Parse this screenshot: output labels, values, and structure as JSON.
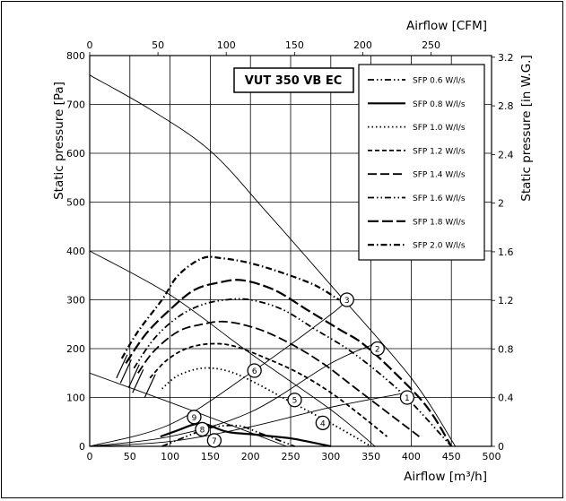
{
  "chart_data": {
    "type": "line",
    "title": "VUT 350 VB EC",
    "xlabel": "Airflow [m³/h]",
    "ylabel": "Static pressure [Pa]",
    "x2label": "Airflow [CFM]",
    "y2label": "Static pressure [in W.G.]",
    "xlim": [
      0,
      500
    ],
    "ylim": [
      0,
      800
    ],
    "x2lim": [
      0,
      294.3
    ],
    "y2lim": [
      0,
      3.2136
    ],
    "xticks": [
      "0",
      "50",
      "100",
      "150",
      "200",
      "250",
      "300",
      "350",
      "400",
      "450",
      "500"
    ],
    "yticks": [
      "0",
      "100",
      "200",
      "300",
      "400",
      "500",
      "600",
      "700",
      "800"
    ],
    "x2ticks": [
      "0",
      "50",
      "100",
      "150",
      "200",
      "250"
    ],
    "y2ticks": [
      "0",
      "0.4",
      "0.8",
      "1.2",
      "1.6",
      "2",
      "2.4",
      "2.8",
      "3.2"
    ],
    "grid": true,
    "legend_position": "top-right",
    "fan_curves": [
      [
        [
          0,
          760
        ],
        [
          75,
          690
        ],
        [
          150,
          605
        ],
        [
          220,
          480
        ],
        [
          300,
          330
        ],
        [
          400,
          140
        ],
        [
          455,
          0
        ]
      ],
      [
        [
          0,
          400
        ],
        [
          100,
          310
        ],
        [
          200,
          190
        ],
        [
          300,
          75
        ],
        [
          355,
          0
        ]
      ],
      [
        [
          0,
          150
        ],
        [
          100,
          90
        ],
        [
          200,
          28
        ],
        [
          245,
          0
        ]
      ]
    ],
    "system_curves": [
      [
        [
          0,
          0
        ],
        [
          100,
          10
        ],
        [
          200,
          40
        ],
        [
          300,
          80
        ],
        [
          395,
          110
        ]
      ],
      [
        [
          0,
          0
        ],
        [
          100,
          20
        ],
        [
          200,
          70
        ],
        [
          300,
          170
        ],
        [
          355,
          210
        ]
      ],
      [
        [
          0,
          0
        ],
        [
          100,
          45
        ],
        [
          200,
          150
        ],
        [
          300,
          270
        ],
        [
          320,
          300
        ]
      ]
    ],
    "series": [
      {
        "name": "SFP 0.6 W/l/s",
        "dash": "7 3 1.5 3 1.5 3",
        "width": 1.8,
        "points": [
          [
            90,
            0
          ],
          [
            120,
            20
          ],
          [
            150,
            38
          ],
          [
            185,
            42
          ],
          [
            215,
            25
          ],
          [
            255,
            0
          ]
        ]
      },
      {
        "name": "SFP 0.8 W/l/s",
        "dash": "",
        "width": 2.2,
        "points": [
          [
            88,
            20
          ],
          [
            110,
            33
          ],
          [
            130,
            45
          ],
          [
            145,
            45
          ],
          [
            170,
            30
          ],
          [
            200,
            25
          ],
          [
            230,
            20
          ],
          [
            255,
            15
          ],
          [
            300,
            0
          ]
        ]
      },
      {
        "name": "SFP 1.0 W/l/s",
        "dash": "1.5 3",
        "width": 1.8,
        "points": [
          [
            90,
            118
          ],
          [
            110,
            145
          ],
          [
            140,
            160
          ],
          [
            170,
            155
          ],
          [
            200,
            135
          ],
          [
            240,
            100
          ],
          [
            280,
            65
          ],
          [
            310,
            38
          ],
          [
            350,
            0
          ]
        ]
      },
      {
        "name": "SFP 1.2 W/l/s",
        "dash": "5 3",
        "width": 1.8,
        "points": [
          [
            75,
            140
          ],
          [
            95,
            175
          ],
          [
            120,
            200
          ],
          [
            150,
            210
          ],
          [
            180,
            205
          ],
          [
            220,
            180
          ],
          [
            260,
            150
          ],
          [
            300,
            110
          ],
          [
            340,
            60
          ],
          [
            370,
            20
          ]
        ]
      },
      {
        "name": "SFP 1.4 W/l/s",
        "dash": "10 4",
        "width": 1.8,
        "points": [
          [
            60,
            150
          ],
          [
            80,
            195
          ],
          [
            110,
            235
          ],
          [
            140,
            250
          ],
          [
            170,
            255
          ],
          [
            210,
            240
          ],
          [
            250,
            210
          ],
          [
            290,
            170
          ],
          [
            330,
            120
          ],
          [
            370,
            70
          ],
          [
            410,
            20
          ]
        ]
      },
      {
        "name": "SFP 1.6 W/l/s",
        "dash": "7 3 1.5 3 1.5 3",
        "width": 1.8,
        "points": [
          [
            55,
            160
          ],
          [
            80,
            220
          ],
          [
            110,
            265
          ],
          [
            140,
            290
          ],
          [
            170,
            300
          ],
          [
            200,
            300
          ],
          [
            240,
            280
          ],
          [
            280,
            240
          ],
          [
            320,
            200
          ],
          [
            360,
            150
          ],
          [
            400,
            90
          ],
          [
            450,
            0
          ]
        ]
      },
      {
        "name": "SFP 1.8 W/l/s",
        "dash": "12 4",
        "width": 2.2,
        "points": [
          [
            45,
            170
          ],
          [
            70,
            230
          ],
          [
            100,
            280
          ],
          [
            130,
            320
          ],
          [
            160,
            335
          ],
          [
            190,
            340
          ],
          [
            230,
            320
          ],
          [
            270,
            280
          ],
          [
            310,
            240
          ],
          [
            340,
            210
          ],
          [
            380,
            150
          ],
          [
            420,
            80
          ],
          [
            450,
            0
          ]
        ]
      },
      {
        "name": "SFP 2.0 W/l/s",
        "dash": "7 3 1.5 3",
        "width": 2.2,
        "points": [
          [
            40,
            180
          ],
          [
            60,
            235
          ],
          [
            90,
            300
          ],
          [
            110,
            350
          ],
          [
            140,
            385
          ],
          [
            165,
            385
          ],
          [
            200,
            375
          ],
          [
            240,
            355
          ],
          [
            280,
            330
          ],
          [
            310,
            300
          ]
        ]
      }
    ],
    "markers": [
      {
        "label": "1",
        "x": 395,
        "y": 100
      },
      {
        "label": "2",
        "x": 358,
        "y": 200
      },
      {
        "label": "3",
        "x": 320,
        "y": 300
      },
      {
        "label": "4",
        "x": 290,
        "y": 48
      },
      {
        "label": "5",
        "x": 255,
        "y": 95
      },
      {
        "label": "6",
        "x": 205,
        "y": 155
      },
      {
        "label": "7",
        "x": 155,
        "y": 12
      },
      {
        "label": "8",
        "x": 140,
        "y": 35
      },
      {
        "label": "9",
        "x": 130,
        "y": 60
      }
    ]
  }
}
